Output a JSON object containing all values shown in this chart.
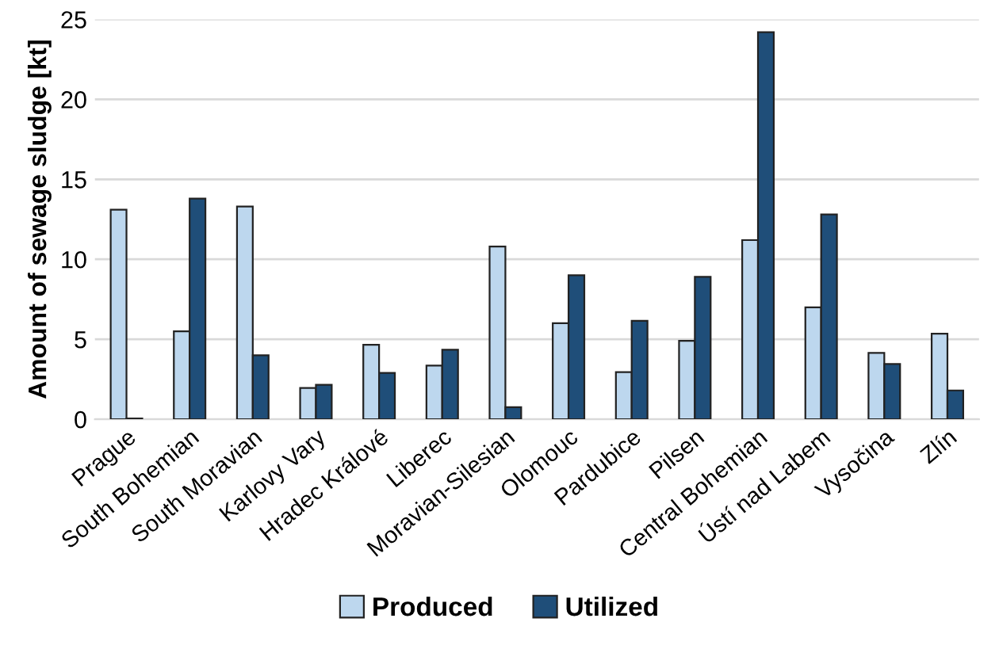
{
  "chart_data": {
    "type": "bar",
    "ylabel": "Amount of sewage sludge [kt]",
    "categories": [
      "Prague",
      "South Bohemian",
      "South Moravian",
      "Karlovy Vary",
      "Hradec Králové",
      "Liberec",
      "Moravian-Silesian",
      "Olomouc",
      "Pardubice",
      "Pilsen",
      "Central Bohemian",
      "Ústí nad Labem",
      "Vysočina",
      "Zlín"
    ],
    "series": [
      {
        "name": "Produced",
        "color": "#bdd7ee",
        "values": [
          13.1,
          5.5,
          13.3,
          1.95,
          4.65,
          3.35,
          10.8,
          6.0,
          2.95,
          4.9,
          11.2,
          7.0,
          4.15,
          5.35
        ]
      },
      {
        "name": "Utilized",
        "color": "#1f4e79",
        "values": [
          0.05,
          13.8,
          4.0,
          2.15,
          2.9,
          4.35,
          0.75,
          9.0,
          6.15,
          8.9,
          24.2,
          12.8,
          3.45,
          1.8
        ]
      }
    ],
    "ylim": [
      0,
      25
    ],
    "yticks": [
      0,
      5,
      10,
      15,
      20,
      25
    ],
    "grid": "y",
    "legend": "bottom"
  }
}
